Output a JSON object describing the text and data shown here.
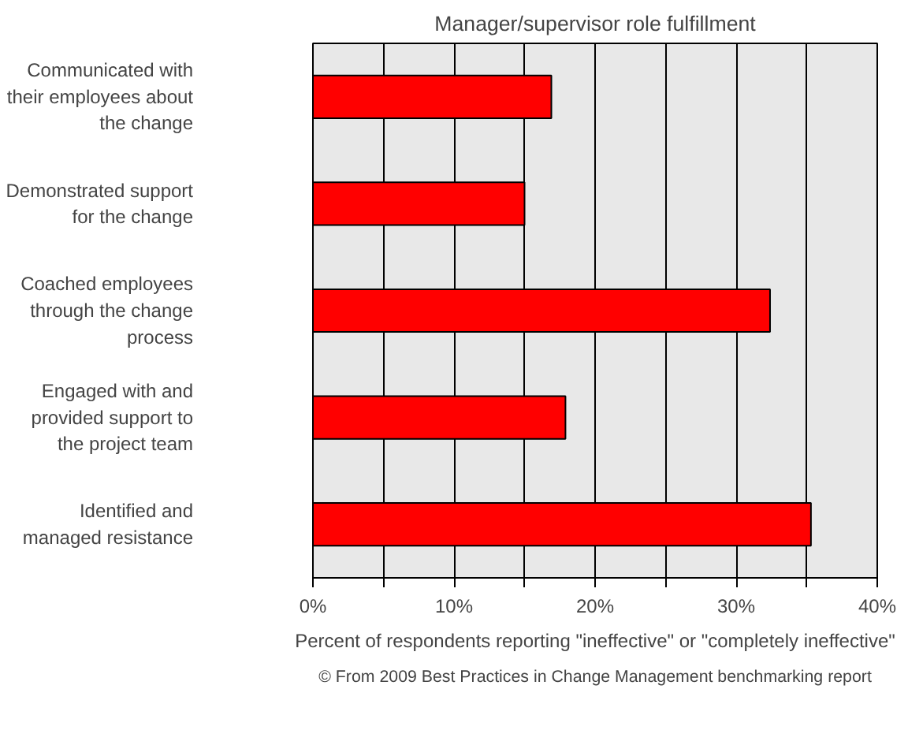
{
  "chart_data": {
    "type": "bar",
    "orientation": "horizontal",
    "title": "Manager/supervisor role fulfillment",
    "xlabel": "Percent of respondents reporting \"ineffective\" or \"completely ineffective\"",
    "categories": [
      "Communicated with\ntheir employees about\nthe change",
      "Demonstrated support\nfor the change",
      "Coached employees\nthrough the change\nprocess",
      "Engaged with and\nprovided support to\nthe project team",
      "Identified and\nmanaged resistance"
    ],
    "values": [
      16.9,
      15.0,
      32.4,
      17.9,
      35.3
    ],
    "color": "#ff0000",
    "xlim": [
      0,
      40
    ],
    "xticks": [
      {
        "value": 0,
        "label": "0%"
      },
      {
        "value": 5,
        "label": null
      },
      {
        "value": 10,
        "label": "10%"
      },
      {
        "value": 15,
        "label": null
      },
      {
        "value": 20,
        "label": "20%"
      },
      {
        "value": 25,
        "label": null
      },
      {
        "value": 30,
        "label": "30%"
      },
      {
        "value": 35,
        "label": null
      },
      {
        "value": 40,
        "label": "40%"
      }
    ],
    "grid": "x",
    "annotations": [
      "© From 2009 Best Practices in Change Management benchmarking report"
    ]
  }
}
